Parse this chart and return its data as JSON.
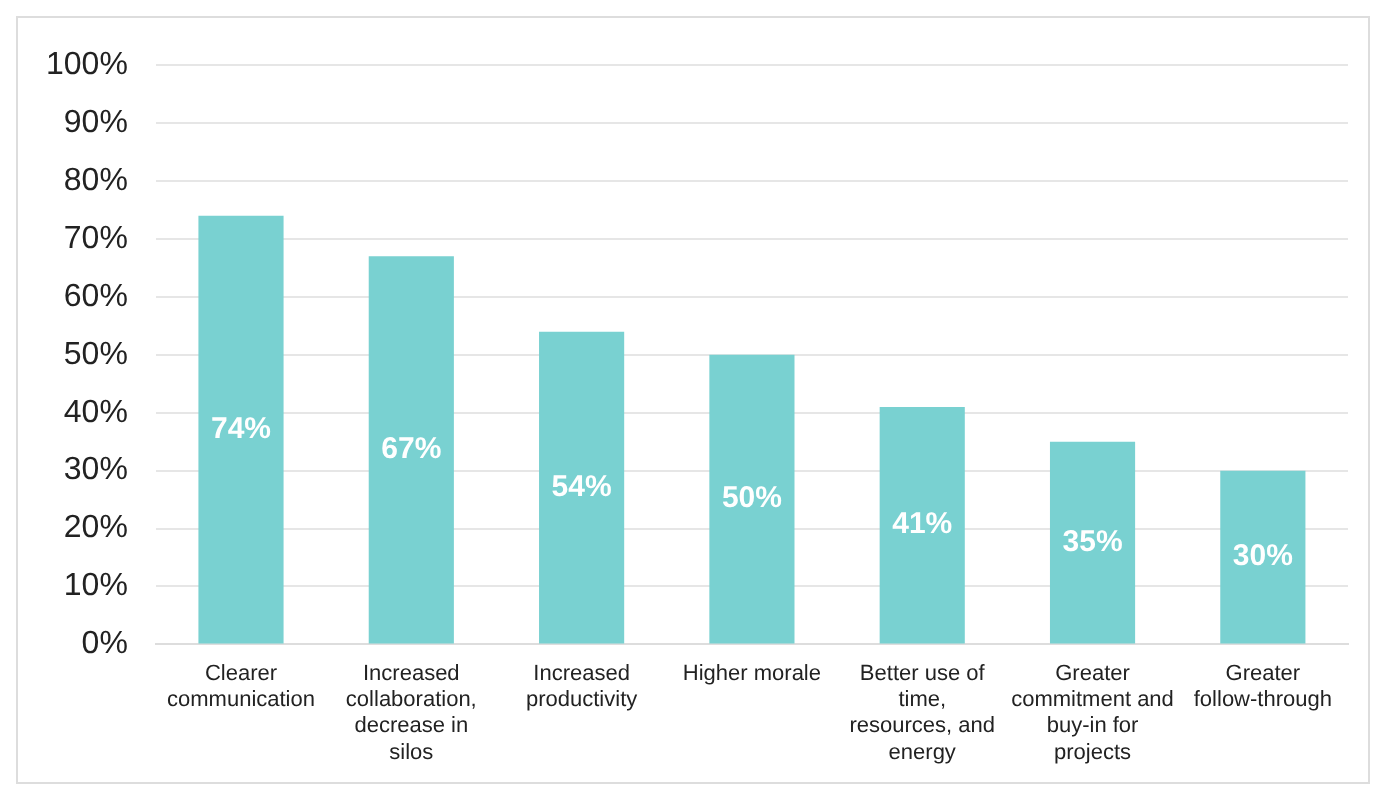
{
  "chart_data": {
    "type": "bar",
    "categories": [
      "Clearer communication",
      "Increased collaboration, decrease in silos",
      "Increased productivity",
      "Higher morale",
      "Better use of time, resources, and energy",
      "Greater commitment and buy-in for projects",
      "Greater follow-through"
    ],
    "values": [
      74,
      67,
      54,
      50,
      41,
      35,
      30
    ],
    "value_labels": [
      "74%",
      "67%",
      "54%",
      "50%",
      "41%",
      "35%",
      "30%"
    ],
    "color": "#79d1d1",
    "ylim": [
      0,
      100
    ],
    "yticks": [
      {
        "value": 0,
        "label": "0%"
      },
      {
        "value": 10,
        "label": "10%"
      },
      {
        "value": 20,
        "label": "20%"
      },
      {
        "value": 30,
        "label": "30%"
      },
      {
        "value": 40,
        "label": "40%"
      },
      {
        "value": 50,
        "label": "50%"
      },
      {
        "value": 60,
        "label": "60%"
      },
      {
        "value": 70,
        "label": "70%"
      },
      {
        "value": 80,
        "label": "80%"
      },
      {
        "value": 90,
        "label": "90%"
      },
      {
        "value": 100,
        "label": "100%"
      }
    ],
    "grid": "y",
    "legend": false
  }
}
